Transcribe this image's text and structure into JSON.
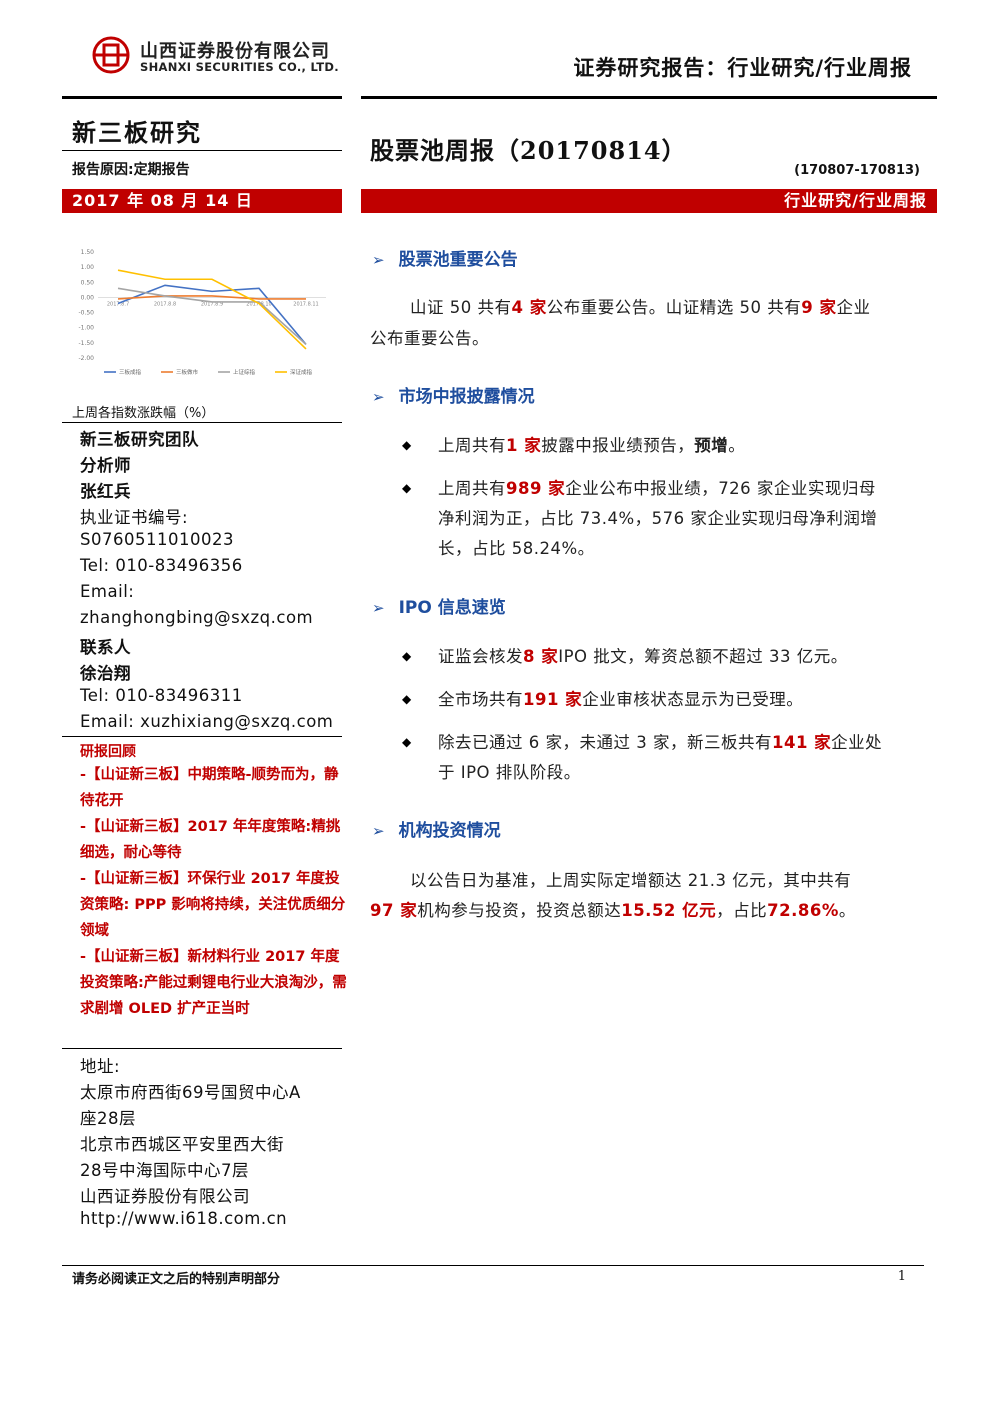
{
  "header": {
    "company_cn": "山西证券股份有限公司",
    "company_en": "SHANXI SECURITIES CO., LTD.",
    "report_type": "证券研究报告：行业研究/行业周报"
  },
  "left": {
    "section": "新三板研究",
    "reason": "报告原因:定期报告",
    "date": "2017 年 08 月 14 日",
    "chart_caption": "上周各指数涨跌幅（%）",
    "team": "新三板研究团队",
    "analyst_label": "分析师",
    "analyst_name": "张红兵",
    "cert_label": "执业证书编号:",
    "cert_no": "S0760511010023",
    "tel1": "Tel: 010-83496356",
    "email_label": "Email:",
    "email1": "zhanghongbing@sxzq.com",
    "contact_label": "联系人",
    "contact_name": "徐治翔",
    "tel2": "Tel: 010-83496311",
    "email2": "Email: xuzhixiang@sxzq.com",
    "review_title": "研报回顾",
    "reviews": [
      "-【山证新三板】中期策略-顺势而为，静待花开",
      "-【山证新三板】2017 年年度策略:精挑细选，耐心等待",
      "-【山证新三板】环保行业 2017 年度投资策略: PPP 影响将持续，关注优质细分领域",
      "-【山证新三板】新材料行业 2017 年度投资策略:产能过剩锂电行业大浪淘沙，需求剧增 OLED 扩产正当时"
    ],
    "address_label": "地址:",
    "address_lines": [
      "太原市府西街69号国贸中心A",
      "座28层",
      "北京市西城区平安里西大街",
      "28号中海国际中心7层",
      "山西证券股份有限公司",
      "http://www.i618.com.cn"
    ]
  },
  "main": {
    "title": "股票池周报（20170814）",
    "period": "(170807-170813)",
    "category": "行业研究/行业周报",
    "sections": {
      "s1": {
        "heading": "股票池重要公告",
        "p_a": "山证 50 共有",
        "n1": "4 家",
        "p_b": "公布重要公告。山证精选 50 共有",
        "n2": "9 家",
        "p_c": "企业",
        "p_d": "公布重要公告。"
      },
      "s2": {
        "heading": "市场中报披露情况",
        "b1_a": "上周共有",
        "b1_n": "1 家",
        "b1_b": "披露中报业绩预告，",
        "b1_c": "预增",
        "b1_d": "。",
        "b2_a": "上周共有",
        "b2_n": "989 家",
        "b2_b": "企业公布中报业绩，726 家企业实现归母",
        "b2_c": "净利润为正，占比 73.4%，576 家企业实现归母净利润增",
        "b2_d": "长，占比 58.24%。"
      },
      "s3": {
        "heading": "IPO 信息速览",
        "b1_a": "证监会核发",
        "b1_n": "8 家",
        "b1_b": "IPO 批文，筹资总额不超过 33 亿元。",
        "b2_a": "全市场共有",
        "b2_n": "191 家",
        "b2_b": "企业审核状态显示为已受理。",
        "b3_a": "除去已通过 6 家，未通过 3 家，新三板共有",
        "b3_n": "141 家",
        "b3_b": "企业处",
        "b3_c": "于 IPO 排队阶段。"
      },
      "s4": {
        "heading": "机构投资情况",
        "p_a": "以公告日为基准，上周实际定增额达 21.3 亿元，其中共有",
        "p_n1": "97 家",
        "p_b": "机构参与投资，投资总额达",
        "p_n2": "15.52 亿元",
        "p_c": "，占比",
        "p_n3": "72.86%",
        "p_d": "。"
      }
    }
  },
  "footer": {
    "notice": "请务必阅读正文之后的特别声明部分",
    "page": "1"
  },
  "chart_data": {
    "type": "line",
    "categories": [
      "2017.8.7",
      "2017.8.8",
      "2017.8.9",
      "2017.8.10",
      "2017.8.11"
    ],
    "ylim": [
      -2.0,
      1.5
    ],
    "yticks": [
      "1.50",
      "1.00",
      "0.50",
      "0.00",
      "-0.50",
      "-1.00",
      "-1.50",
      "-2.00"
    ],
    "series": [
      {
        "name": "三板成指",
        "color": "#4472c4",
        "values": [
          -0.2,
          0.4,
          0.2,
          0.3,
          -1.55
        ]
      },
      {
        "name": "三板做市",
        "color": "#ed7d31",
        "values": [
          -0.05,
          0.05,
          0.05,
          -0.05,
          -0.05
        ]
      },
      {
        "name": "上证综指",
        "color": "#a5a5a5",
        "values": [
          0.3,
          0.05,
          -0.15,
          -0.15,
          -1.55
        ]
      },
      {
        "name": "深证成指",
        "color": "#ffc000",
        "values": [
          0.9,
          0.6,
          0.6,
          -0.2,
          -1.7
        ]
      }
    ]
  }
}
